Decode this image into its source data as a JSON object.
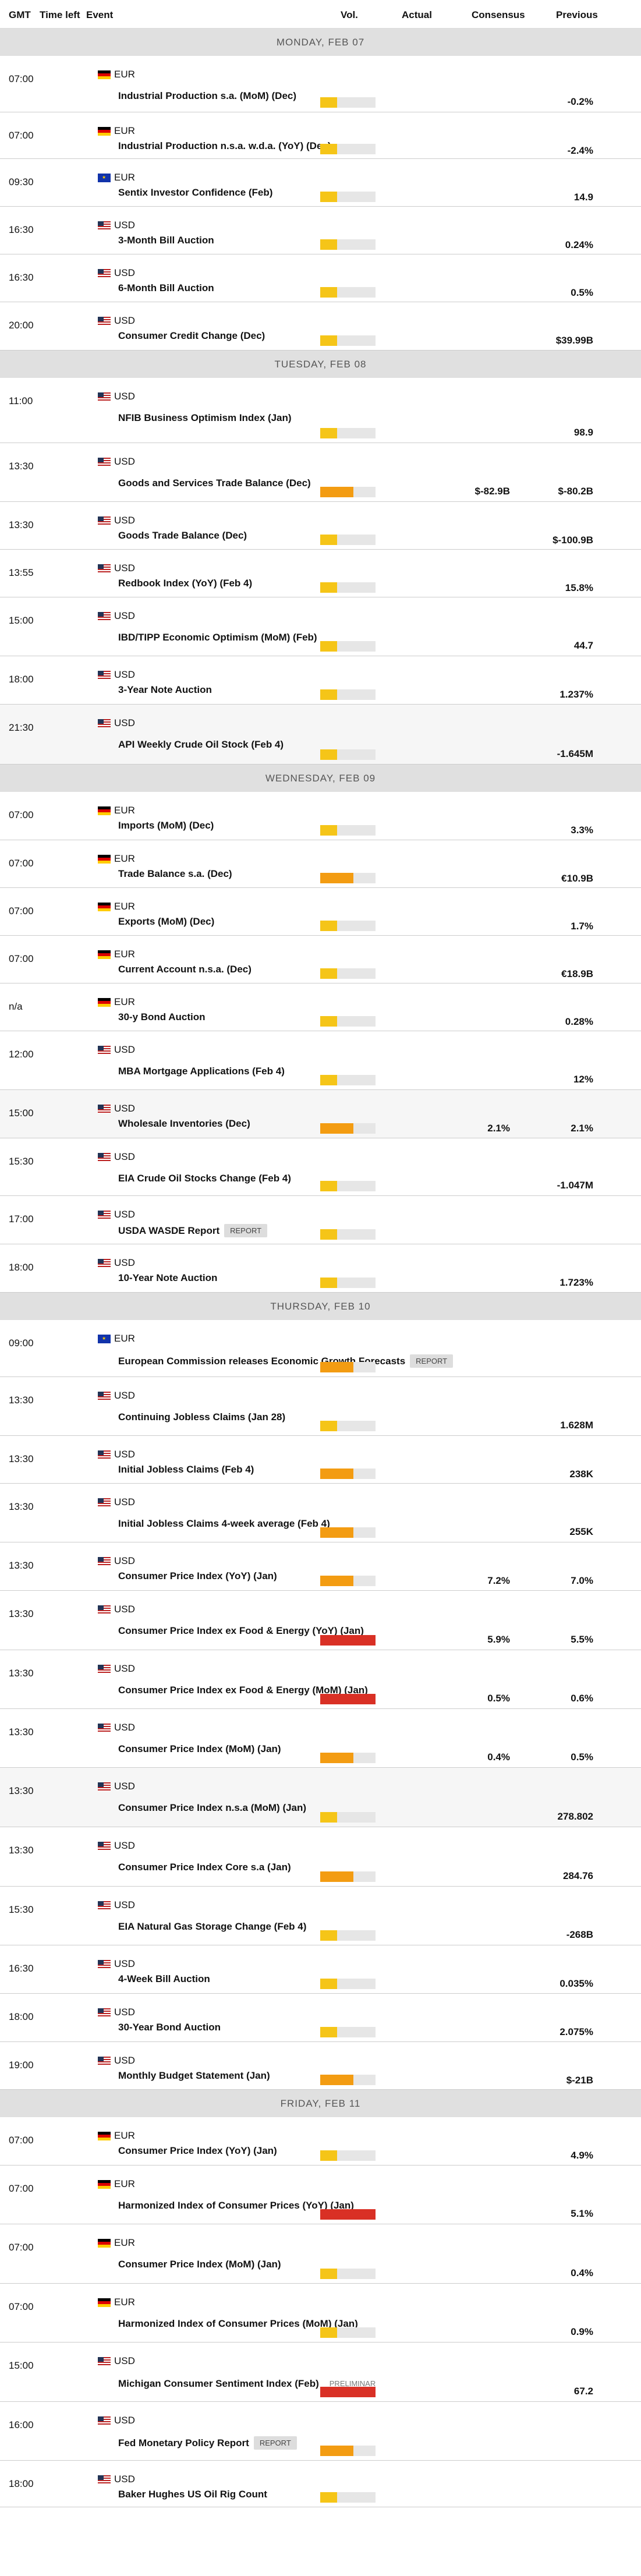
{
  "columns": {
    "gmt": "GMT",
    "time_left": "Time left",
    "event": "Event",
    "vol": "Vol.",
    "actual": "Actual",
    "consensus": "Consensus",
    "previous": "Previous"
  },
  "colors": {
    "vol_low": "#f5c518",
    "vol_medium": "#f39c12",
    "vol_high": "#d93025"
  },
  "days": [
    {
      "label": "MONDAY, FEB 07",
      "events": [
        {
          "time": "07:00",
          "flag": "de",
          "currency": "EUR",
          "name": "Industrial Production s.a. (MoM) (Dec)",
          "vol": "low",
          "vol_level": 0.3,
          "consensus": "",
          "previous": "-0.2%",
          "height": 97
        },
        {
          "time": "07:00",
          "flag": "de",
          "currency": "EUR",
          "name": "Industrial Production n.s.a. w.d.a. (YoY) (Dec)",
          "vol": "low",
          "vol_level": 0.3,
          "consensus": "",
          "previous": "-2.4%",
          "height": 80
        },
        {
          "time": "09:30",
          "flag": "eu",
          "currency": "EUR",
          "name": "Sentix Investor Confidence (Feb)",
          "vol": "low",
          "vol_level": 0.3,
          "consensus": "",
          "previous": "14.9",
          "height": 82
        },
        {
          "time": "16:30",
          "flag": "us",
          "currency": "USD",
          "name": "3-Month Bill Auction",
          "vol": "low",
          "vol_level": 0.3,
          "consensus": "",
          "previous": "0.24%",
          "height": 82
        },
        {
          "time": "16:30",
          "flag": "us",
          "currency": "USD",
          "name": "6-Month Bill Auction",
          "vol": "low",
          "vol_level": 0.3,
          "consensus": "",
          "previous": "0.5%",
          "height": 82
        },
        {
          "time": "20:00",
          "flag": "us",
          "currency": "USD",
          "name": "Consumer Credit Change (Dec)",
          "vol": "low",
          "vol_level": 0.3,
          "consensus": "",
          "previous": "$39.99B",
          "height": 83
        }
      ]
    },
    {
      "label": "TUESDAY, FEB 08",
      "events": [
        {
          "time": "11:00",
          "flag": "us",
          "currency": "USD",
          "name": "NFIB Business Optimism Index (Jan)",
          "vol": "low",
          "vol_level": 0.3,
          "consensus": "",
          "previous": "98.9",
          "height": 112
        },
        {
          "time": "13:30",
          "flag": "us",
          "currency": "USD",
          "name": "Goods and Services Trade Balance (Dec)",
          "vol": "medium",
          "vol_level": 0.6,
          "consensus": "$-82.9B",
          "previous": "$-80.2B",
          "height": 101
        },
        {
          "time": "13:30",
          "flag": "us",
          "currency": "USD",
          "name": "Goods Trade Balance (Dec)",
          "vol": "low",
          "vol_level": 0.3,
          "consensus": "",
          "previous": "$-100.9B",
          "height": 82
        },
        {
          "time": "13:55",
          "flag": "us",
          "currency": "USD",
          "name": "Redbook Index (YoY) (Feb 4)",
          "vol": "low",
          "vol_level": 0.3,
          "consensus": "",
          "previous": "15.8%",
          "height": 82
        },
        {
          "time": "15:00",
          "flag": "us",
          "currency": "USD",
          "name": "IBD/TIPP Economic Optimism (MoM) (Feb)",
          "vol": "low",
          "vol_level": 0.3,
          "consensus": "",
          "previous": "44.7",
          "height": 101
        },
        {
          "time": "18:00",
          "flag": "us",
          "currency": "USD",
          "name": "3-Year Note Auction",
          "vol": "low",
          "vol_level": 0.3,
          "consensus": "",
          "previous": "1.237%",
          "height": 83
        },
        {
          "time": "21:30",
          "flag": "us",
          "currency": "USD",
          "name": "API Weekly Crude Oil Stock (Feb 4)",
          "vol": "low",
          "vol_level": 0.3,
          "consensus": "",
          "previous": "-1.645M",
          "height": 103,
          "alt": true
        }
      ]
    },
    {
      "label": "WEDNESDAY, FEB 09",
      "events": [
        {
          "time": "07:00",
          "flag": "de",
          "currency": "EUR",
          "name": "Imports (MoM) (Dec)",
          "vol": "low",
          "vol_level": 0.3,
          "consensus": "",
          "previous": "3.3%",
          "height": 83
        },
        {
          "time": "07:00",
          "flag": "de",
          "currency": "EUR",
          "name": "Trade Balance s.a. (Dec)",
          "vol": "medium",
          "vol_level": 0.6,
          "consensus": "",
          "previous": "€10.9B",
          "height": 82
        },
        {
          "time": "07:00",
          "flag": "de",
          "currency": "EUR",
          "name": "Exports (MoM) (Dec)",
          "vol": "low",
          "vol_level": 0.3,
          "consensus": "",
          "previous": "1.7%",
          "height": 82
        },
        {
          "time": "07:00",
          "flag": "de",
          "currency": "EUR",
          "name": "Current Account n.s.a. (Dec)",
          "vol": "low",
          "vol_level": 0.3,
          "consensus": "",
          "previous": "€18.9B",
          "height": 82
        },
        {
          "time": "n/a",
          "flag": "de",
          "currency": "EUR",
          "name": "30-y Bond Auction",
          "vol": "low",
          "vol_level": 0.3,
          "consensus": "",
          "previous": "0.28%",
          "height": 82
        },
        {
          "time": "12:00",
          "flag": "us",
          "currency": "USD",
          "name": "MBA Mortgage Applications (Feb 4)",
          "vol": "low",
          "vol_level": 0.3,
          "consensus": "",
          "previous": "12%",
          "height": 101
        },
        {
          "time": "15:00",
          "flag": "us",
          "currency": "USD",
          "name": "Wholesale Inventories (Dec)",
          "vol": "medium",
          "vol_level": 0.6,
          "consensus": "2.1%",
          "previous": "2.1%",
          "height": 83,
          "alt": true
        },
        {
          "time": "15:30",
          "flag": "us",
          "currency": "USD",
          "name": "EIA Crude Oil Stocks Change (Feb 4)",
          "vol": "low",
          "vol_level": 0.3,
          "consensus": "",
          "previous": "-1.047M",
          "height": 99
        },
        {
          "time": "17:00",
          "flag": "us",
          "currency": "USD",
          "name": "USDA WASDE Report",
          "tag": "REPORT",
          "vol": "low",
          "vol_level": 0.3,
          "consensus": "",
          "previous": "",
          "height": 83
        },
        {
          "time": "18:00",
          "flag": "us",
          "currency": "USD",
          "name": "10-Year Note Auction",
          "vol": "low",
          "vol_level": 0.3,
          "consensus": "",
          "previous": "1.723%",
          "height": 83
        }
      ]
    },
    {
      "label": "THURSDAY, FEB 10",
      "events": [
        {
          "time": "09:00",
          "flag": "eu",
          "currency": "EUR",
          "name": "European Commission releases Economic Growth Forecasts",
          "tag": "REPORT",
          "vol": "medium",
          "vol_level": 0.6,
          "consensus": "",
          "previous": "",
          "height": 98
        },
        {
          "time": "13:30",
          "flag": "us",
          "currency": "USD",
          "name": "Continuing Jobless Claims (Jan 28)",
          "vol": "low",
          "vol_level": 0.3,
          "consensus": "",
          "previous": "1.628M",
          "height": 101
        },
        {
          "time": "13:30",
          "flag": "us",
          "currency": "USD",
          "name": "Initial Jobless Claims (Feb 4)",
          "vol": "medium",
          "vol_level": 0.6,
          "consensus": "",
          "previous": "238K",
          "height": 82
        },
        {
          "time": "13:30",
          "flag": "us",
          "currency": "USD",
          "name": "Initial Jobless Claims 4-week average (Feb 4)",
          "vol": "medium",
          "vol_level": 0.6,
          "consensus": "",
          "previous": "255K",
          "height": 101
        },
        {
          "time": "13:30",
          "flag": "us",
          "currency": "USD",
          "name": "Consumer Price Index (YoY) (Jan)",
          "vol": "medium",
          "vol_level": 0.6,
          "consensus": "7.2%",
          "previous": "7.0%",
          "height": 83
        },
        {
          "time": "13:30",
          "flag": "us",
          "currency": "USD",
          "name": "Consumer Price Index ex Food & Energy (YoY) (Jan)",
          "vol": "high",
          "vol_level": 1.0,
          "consensus": "5.9%",
          "previous": "5.5%",
          "height": 102
        },
        {
          "time": "13:30",
          "flag": "us",
          "currency": "USD",
          "name": "Consumer Price Index ex Food & Energy (MoM) (Jan)",
          "vol": "high",
          "vol_level": 1.0,
          "consensus": "0.5%",
          "previous": "0.6%",
          "height": 101
        },
        {
          "time": "13:30",
          "flag": "us",
          "currency": "USD",
          "name": "Consumer Price Index (MoM) (Jan)",
          "vol": "medium",
          "vol_level": 0.6,
          "consensus": "0.4%",
          "previous": "0.5%",
          "height": 101
        },
        {
          "time": "13:30",
          "flag": "us",
          "currency": "USD",
          "name": "Consumer Price Index n.s.a (MoM) (Jan)",
          "vol": "low",
          "vol_level": 0.3,
          "consensus": "",
          "previous": "278.802",
          "height": 102,
          "alt": true
        },
        {
          "time": "13:30",
          "flag": "us",
          "currency": "USD",
          "name": "Consumer Price Index Core s.a (Jan)",
          "vol": "medium",
          "vol_level": 0.6,
          "consensus": "",
          "previous": "284.76",
          "height": 102
        },
        {
          "time": "15:30",
          "flag": "us",
          "currency": "USD",
          "name": "EIA Natural Gas Storage Change (Feb 4)",
          "vol": "low",
          "vol_level": 0.3,
          "consensus": "",
          "previous": "-268B",
          "height": 101
        },
        {
          "time": "16:30",
          "flag": "us",
          "currency": "USD",
          "name": "4-Week Bill Auction",
          "vol": "low",
          "vol_level": 0.3,
          "consensus": "",
          "previous": "0.035%",
          "height": 83
        },
        {
          "time": "18:00",
          "flag": "us",
          "currency": "USD",
          "name": "30-Year Bond Auction",
          "vol": "low",
          "vol_level": 0.3,
          "consensus": "",
          "previous": "2.075%",
          "height": 83
        },
        {
          "time": "19:00",
          "flag": "us",
          "currency": "USD",
          "name": "Monthly Budget Statement (Jan)",
          "vol": "medium",
          "vol_level": 0.6,
          "consensus": "",
          "previous": "$-21B",
          "height": 82
        }
      ]
    },
    {
      "label": "FRIDAY, FEB 11",
      "events": [
        {
          "time": "07:00",
          "flag": "de",
          "currency": "EUR",
          "name": "Consumer Price Index (YoY) (Jan)",
          "vol": "low",
          "vol_level": 0.3,
          "consensus": "",
          "previous": "4.9%",
          "height": 83
        },
        {
          "time": "07:00",
          "flag": "de",
          "currency": "EUR",
          "name": "Harmonized Index of Consumer Prices (YoY) (Jan)",
          "vol": "high",
          "vol_level": 1.0,
          "consensus": "",
          "previous": "5.1%",
          "height": 101
        },
        {
          "time": "07:00",
          "flag": "de",
          "currency": "EUR",
          "name": "Consumer Price Index (MoM) (Jan)",
          "vol": "low",
          "vol_level": 0.3,
          "consensus": "",
          "previous": "0.4%",
          "height": 102
        },
        {
          "time": "07:00",
          "flag": "de",
          "currency": "EUR",
          "name": "Harmonized Index of Consumer Prices (MoM) (Jan)",
          "vol": "low",
          "vol_level": 0.3,
          "consensus": "",
          "previous": "0.9%",
          "height": 101
        },
        {
          "time": "15:00",
          "flag": "us",
          "currency": "USD",
          "name": "Michigan Consumer Sentiment Index (Feb)",
          "tag": "PRELIMINAR",
          "tag_style": "pre",
          "vol": "high",
          "vol_level": 1.0,
          "consensus": "",
          "previous": "67.2",
          "height": 102
        },
        {
          "time": "16:00",
          "flag": "us",
          "currency": "USD",
          "name": "Fed Monetary Policy Report",
          "tag": "REPORT",
          "vol": "medium",
          "vol_level": 0.6,
          "consensus": "",
          "previous": "",
          "height": 101
        },
        {
          "time": "18:00",
          "flag": "us",
          "currency": "USD",
          "name": "Baker Hughes US Oil Rig Count",
          "vol": "low",
          "vol_level": 0.3,
          "consensus": "",
          "previous": "",
          "height": 80
        }
      ]
    }
  ]
}
